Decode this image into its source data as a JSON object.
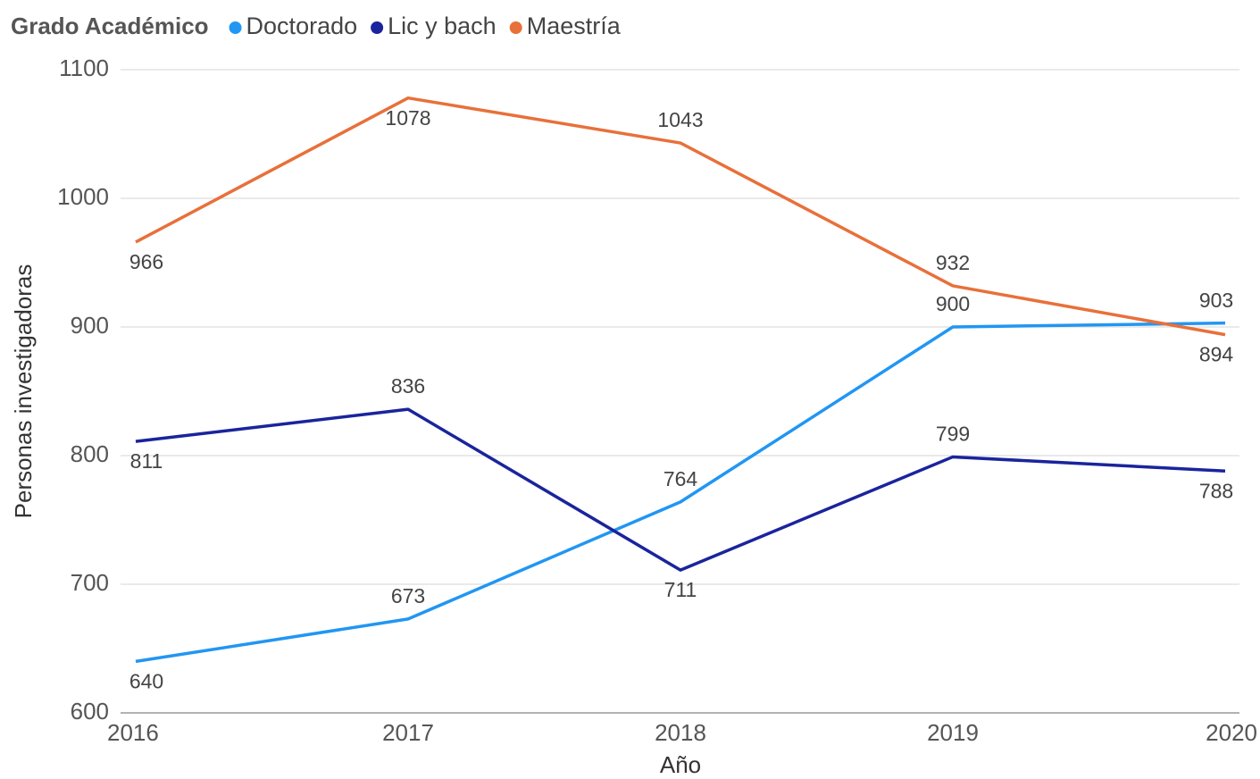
{
  "chart_data": {
    "type": "line",
    "legend_title": "Grado Académico",
    "x_label": "Año",
    "y_label": "Personas investigadoras",
    "categories": [
      "2016",
      "2017",
      "2018",
      "2019",
      "2020"
    ],
    "series": [
      {
        "name": "Doctorado",
        "color": "#2196f3",
        "values": [
          640,
          673,
          764,
          900,
          903
        ]
      },
      {
        "name": "Lic y bach",
        "color": "#1a249c",
        "values": [
          811,
          836,
          711,
          799,
          788
        ]
      },
      {
        "name": "Maestría",
        "color": "#e8703a",
        "values": [
          966,
          1078,
          1043,
          932,
          894
        ]
      }
    ],
    "ylim": [
      600,
      1100
    ],
    "yticks": [
      600,
      700,
      800,
      900,
      1000,
      1100
    ],
    "grid": true,
    "legend": "top"
  }
}
